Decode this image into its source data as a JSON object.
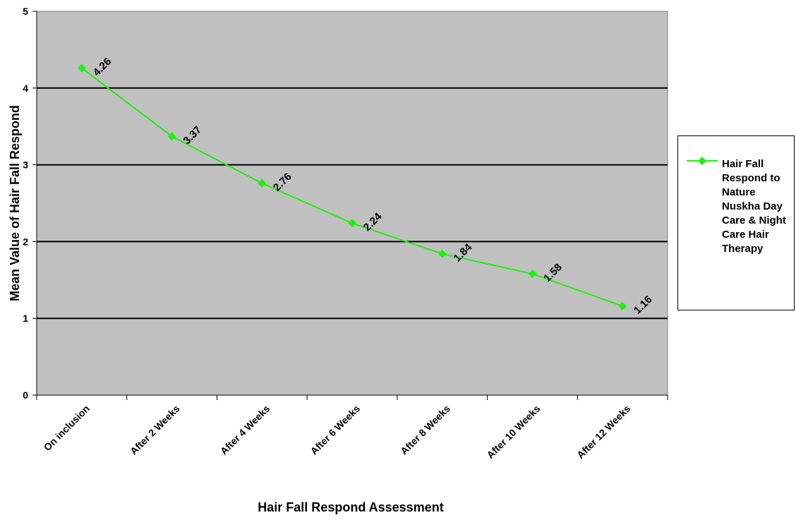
{
  "chart_data": {
    "type": "line",
    "title": "",
    "xlabel": "Hair Fall Respond Assessment",
    "ylabel": "Mean Value of Hair Fall Respond",
    "categories": [
      "On inclusion",
      "After 2 Weeks",
      "After 4 Weeks",
      "After 6 Weeks",
      "After 8 Weeks",
      "After 10 Weeks",
      "After 12 Weeks"
    ],
    "series": [
      {
        "name": "Hair Fall Respond to Nature Nuskha Day Care & Night Care Hair Therapy",
        "values": [
          4.26,
          3.37,
          2.76,
          2.24,
          1.84,
          1.58,
          1.16
        ],
        "data_labels": [
          "4.26",
          "3.37",
          "2.76",
          "2.24",
          "1.84",
          "1.58",
          "1.16"
        ],
        "color": "#22ee11"
      }
    ],
    "ylim": [
      0,
      5
    ],
    "y_ticks": [
      "0",
      "1",
      "2",
      "3",
      "4",
      "5"
    ],
    "grid": true,
    "plot_background": "#c0c0c0",
    "legend_position": "right"
  }
}
